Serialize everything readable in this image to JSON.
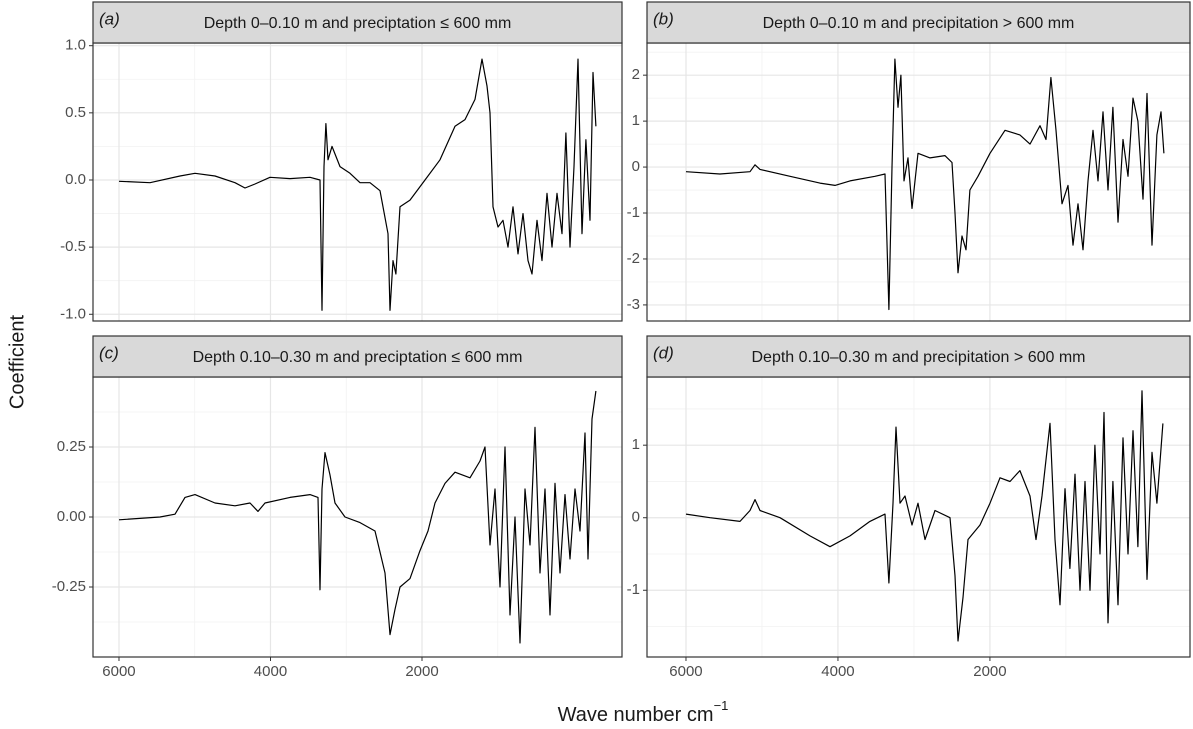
{
  "chart_data": [
    {
      "type": "line",
      "panel": "(a)",
      "title": "Depth 0–0.10 m and preciptation ≤ 600 mm",
      "xlim": [
        6343,
        -640
      ],
      "xticks": [
        6000,
        4000,
        2000
      ],
      "x_minor_ticks": [
        5000,
        3000,
        1000
      ],
      "ylim": [
        -1.05,
        1.02
      ],
      "yticks": [
        {
          "value": -1,
          "label": "-1.0"
        },
        -0.5,
        {
          "value": 0,
          "label": "0.0"
        },
        0.5,
        {
          "value": 1,
          "label": "1.0"
        }
      ],
      "y_minor_ticks": [
        -0.75,
        -0.25,
        0.25,
        0.75
      ],
      "grid": true,
      "series": [
        {
          "color": "#000000",
          "x": [
            6000,
            5591,
            5195,
            4997,
            4733,
            4469,
            4337,
            4205,
            4007,
            3743,
            3479,
            3347,
            3320,
            3294,
            3268,
            3241,
            3188,
            3083,
            2951,
            2819,
            2687,
            2555,
            2449,
            2423,
            2383,
            2344,
            2291,
            2159,
            1961,
            1763,
            1565,
            1433,
            1301,
            1208,
            1142,
            1103,
            1063,
            997,
            931,
            865,
            799,
            733,
            667,
            601,
            548,
            482,
            416,
            350,
            284,
            218,
            152,
            100,
            47,
            -6,
            -59,
            -112,
            -164,
            -217,
            -257,
            -296
          ],
          "values": [
            -0.01,
            -0.02,
            0.03,
            0.05,
            0.03,
            -0.02,
            -0.06,
            -0.03,
            0.02,
            0.01,
            0.02,
            0,
            -0.97,
            0.1,
            0.42,
            0.15,
            0.25,
            0.1,
            0.05,
            -0.02,
            -0.02,
            -0.08,
            -0.4,
            -0.97,
            -0.6,
            -0.7,
            -0.2,
            -0.15,
            0,
            0.15,
            0.4,
            0.45,
            0.6,
            0.9,
            0.7,
            0.5,
            -0.2,
            -0.35,
            -0.3,
            -0.5,
            -0.2,
            -0.55,
            -0.25,
            -0.6,
            -0.7,
            -0.3,
            -0.6,
            -0.1,
            -0.5,
            -0.1,
            -0.4,
            0.35,
            -0.5,
            0.1,
            0.9,
            -0.4,
            0.3,
            -0.3,
            0.8,
            0.4
          ]
        }
      ]
    },
    {
      "type": "line",
      "panel": "(b)",
      "title": "Depth 0–0.10 m and precipitation > 600 mm",
      "xlim": [
        6513,
        -633
      ],
      "xticks": [
        6000,
        4000,
        2000
      ],
      "x_minor_ticks": [
        5000,
        3000,
        1000
      ],
      "ylim": [
        -3.35,
        2.7
      ],
      "yticks": [
        -3,
        -2,
        -1,
        0,
        1,
        2
      ],
      "y_minor_ticks": [
        -2.5,
        -1.5,
        -0.5,
        0.5,
        1.5,
        2.5
      ],
      "grid": true,
      "series": [
        {
          "color": "#000000",
          "x": [
            6000,
            5553,
            5158,
            5092,
            5026,
            4631,
            4237,
            4039,
            3842,
            3513,
            3381,
            3329,
            3289,
            3250,
            3210,
            3171,
            3131,
            3078,
            3026,
            2947,
            2789,
            2592,
            2499,
            2460,
            2420,
            2368,
            2315,
            2263,
            2157,
            1999,
            1802,
            1605,
            1473,
            1341,
            1262,
            1197,
            1131,
            1052,
            973,
            907,
            841,
            775,
            710,
            644,
            578,
            512,
            446,
            381,
            315,
            249,
            183,
            117,
            52,
            -14,
            -67,
            -133,
            -198,
            -251,
            -290
          ],
          "values": [
            -0.1,
            -0.15,
            -0.1,
            0.05,
            -0.05,
            -0.2,
            -0.35,
            -0.4,
            -0.3,
            -0.2,
            -0.15,
            -3.1,
            0,
            2.35,
            1.3,
            2.0,
            -0.3,
            0.2,
            -0.9,
            0.3,
            0.2,
            0.25,
            0.1,
            -1.0,
            -2.3,
            -1.5,
            -1.8,
            -0.5,
            -0.2,
            0.3,
            0.8,
            0.7,
            0.5,
            0.9,
            0.6,
            1.95,
            0.8,
            -0.8,
            -0.4,
            -1.7,
            -0.8,
            -1.8,
            -0.3,
            0.8,
            -0.3,
            1.2,
            -0.5,
            1.3,
            -1.2,
            0.6,
            -0.2,
            1.5,
            1.0,
            -0.7,
            1.6,
            -1.7,
            0.7,
            1.2,
            0.3
          ]
        }
      ]
    },
    {
      "type": "line",
      "panel": "(c)",
      "title": "Depth 0.10–0.30 m and preciptation ≤ 600 mm",
      "xlim": [
        6343,
        -640
      ],
      "xticks": [
        6000,
        4000,
        2000
      ],
      "x_minor_ticks": [
        5000,
        3000,
        1000
      ],
      "ylim": [
        -0.5,
        0.5
      ],
      "yticks": [
        -0.25,
        {
          "value": 0,
          "label": "0.00"
        },
        0.25
      ],
      "y_minor_ticks": [
        -0.375,
        -0.125,
        0.125,
        0.375
      ],
      "grid": true,
      "series": [
        {
          "color": "#000000",
          "x": [
            6000,
            5459,
            5261,
            5129,
            4997,
            4733,
            4469,
            4271,
            4165,
            4073,
            3743,
            3479,
            3373,
            3347,
            3320,
            3281,
            3215,
            3149,
            3017,
            2819,
            2621,
            2489,
            2423,
            2357,
            2291,
            2159,
            2027,
            1921,
            1829,
            1697,
            1565,
            1367,
            1235,
            1169,
            1103,
            1037,
            971,
            905,
            839,
            773,
            707,
            641,
            575,
            509,
            443,
            377,
            311,
            245,
            179,
            113,
            47,
            -19,
            -85,
            -151,
            -191,
            -244,
            -296
          ],
          "values": [
            -0.01,
            0,
            0.01,
            0.07,
            0.08,
            0.05,
            0.04,
            0.05,
            0.02,
            0.05,
            0.07,
            0.08,
            0.07,
            -0.26,
            0.1,
            0.23,
            0.15,
            0.05,
            0,
            -0.02,
            -0.05,
            -0.2,
            -0.42,
            -0.33,
            -0.25,
            -0.22,
            -0.12,
            -0.05,
            0.05,
            0.12,
            0.16,
            0.14,
            0.2,
            0.25,
            -0.1,
            0.1,
            -0.25,
            0.25,
            -0.35,
            0,
            -0.45,
            0.1,
            -0.1,
            0.32,
            -0.2,
            0.1,
            -0.35,
            0.12,
            -0.2,
            0.08,
            -0.15,
            0.1,
            -0.05,
            0.3,
            -0.15,
            0.35,
            0.45
          ]
        }
      ]
    },
    {
      "type": "line",
      "panel": "(d)",
      "title": "Depth 0.10–0.30 m and precipitation > 600 mm",
      "xlim": [
        6513,
        -633
      ],
      "xticks": [
        6000,
        4000,
        2000
      ],
      "x_minor_ticks": [
        5000,
        3000,
        1000
      ],
      "ylim": [
        -1.92,
        1.94
      ],
      "yticks": [
        -1,
        0,
        1
      ],
      "y_minor_ticks": [
        -1.5,
        -0.5,
        0.5,
        1.5
      ],
      "grid": true,
      "series": [
        {
          "color": "#000000",
          "x": [
            6000,
            5684,
            5289,
            5158,
            5092,
            5026,
            4763,
            4368,
            4105,
            3842,
            3579,
            3381,
            3329,
            3276,
            3236,
            3184,
            3118,
            3026,
            2947,
            2855,
            2723,
            2526,
            2460,
            2420,
            2355,
            2289,
            2131,
            1999,
            1868,
            1736,
            1605,
            1473,
            1394,
            1315,
            1210,
            1144,
            1078,
            1012,
            947,
            881,
            815,
            749,
            683,
            618,
            552,
            499,
            446,
            381,
            315,
            249,
            183,
            117,
            52,
            -1,
            -67,
            -133,
            -198,
            -277
          ],
          "values": [
            0.05,
            0,
            -0.05,
            0.1,
            0.25,
            0.1,
            0,
            -0.25,
            -0.4,
            -0.25,
            -0.05,
            0.05,
            -0.9,
            0.2,
            1.25,
            0.2,
            0.3,
            -0.1,
            0.2,
            -0.3,
            0.1,
            0,
            -0.8,
            -1.7,
            -1.1,
            -0.3,
            -0.1,
            0.2,
            0.55,
            0.5,
            0.65,
            0.3,
            -0.3,
            0.3,
            1.3,
            -0.3,
            -1.2,
            0.4,
            -0.7,
            0.6,
            -1.0,
            0.5,
            -1.0,
            1.0,
            -0.5,
            1.45,
            -1.45,
            0.5,
            -1.2,
            1.1,
            -0.5,
            1.2,
            -0.4,
            1.75,
            -0.85,
            0.9,
            0.2,
            1.3
          ]
        }
      ]
    }
  ],
  "ylabel": "Coefficient",
  "xlabel": "Wave number cm",
  "xlabel_sup": "−1"
}
